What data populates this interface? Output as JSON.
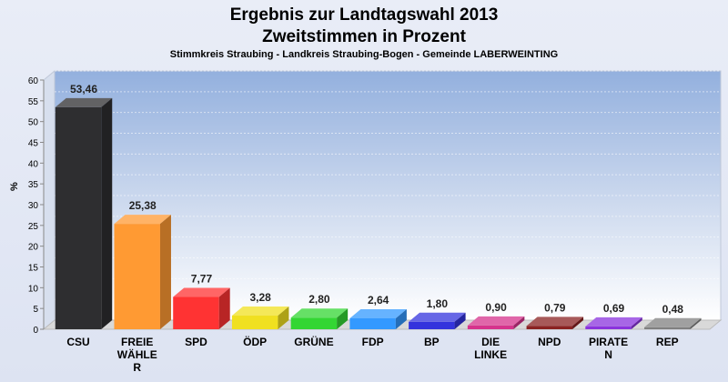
{
  "chart_data": {
    "type": "bar",
    "title": "Ergebnis zur Landtagswahl 2013",
    "subtitle": "Zweitstimmen in Prozent",
    "caption": "Stimmkreis Straubing - Landkreis Straubing-Bogen - Gemeinde LABERWEINTING",
    "ylabel": "%",
    "ylim": [
      0,
      60
    ],
    "yticks": [
      "0",
      "5",
      "10",
      "15",
      "20",
      "25",
      "30",
      "35",
      "40",
      "45",
      "50",
      "55",
      "60"
    ],
    "grid": true,
    "categories": [
      [
        "CSU"
      ],
      [
        "FREIE",
        "WÄHLE",
        "R"
      ],
      [
        "SPD"
      ],
      [
        "ÖDP"
      ],
      [
        "GRÜNE"
      ],
      [
        "FDP"
      ],
      [
        "BP"
      ],
      [
        "DIE",
        "LINKE"
      ],
      [
        "NPD"
      ],
      [
        "PIRATE",
        "N"
      ],
      [
        "REP"
      ]
    ],
    "values": [
      53.46,
      25.38,
      7.77,
      3.28,
      2.8,
      2.64,
      1.8,
      0.9,
      0.79,
      0.69,
      0.48
    ],
    "value_labels": [
      "53,46",
      "25,38",
      "7,77",
      "3,28",
      "2,80",
      "2,64",
      "1,80",
      "0,90",
      "0,79",
      "0,69",
      "0,48"
    ],
    "colors": [
      "#2e2e30",
      "#ff9a33",
      "#ff3333",
      "#f0e020",
      "#33d633",
      "#3399ff",
      "#3333dd",
      "#d6338c",
      "#8a2222",
      "#8a33dd",
      "#808080"
    ]
  }
}
